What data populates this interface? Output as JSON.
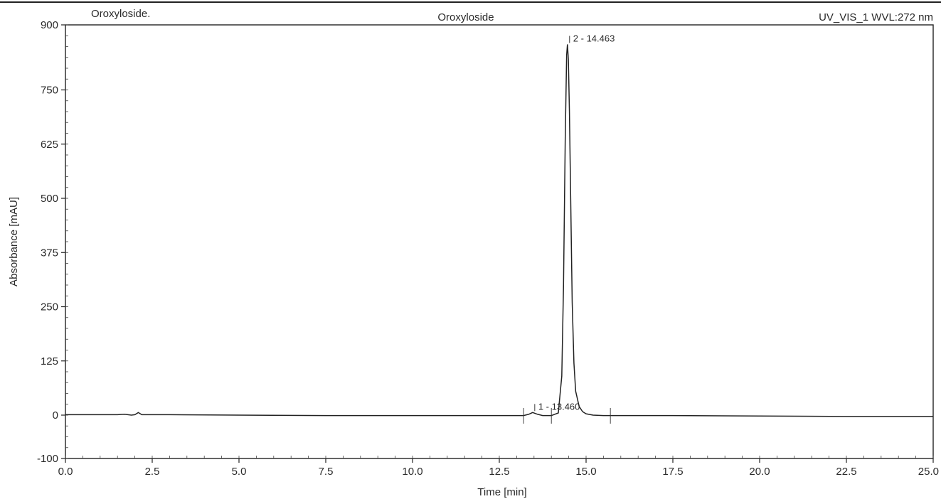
{
  "header": {
    "sample_name": "Oroxyloside.",
    "title": "Oroxyloside",
    "channel": "UV_VIS_1 WVL:272 nm"
  },
  "chart_data": {
    "type": "line",
    "title": "Oroxyloside",
    "xlabel": "Time [min]",
    "ylabel": "Absorbance [mAU]",
    "xlim": [
      0,
      25
    ],
    "ylim": [
      -100,
      900
    ],
    "x_ticks": [
      0,
      2.5,
      5,
      7.5,
      10,
      12.5,
      15,
      17.5,
      20,
      22.5,
      25
    ],
    "x_tick_labels": [
      "0.0",
      "2.5",
      "5.0",
      "7.5",
      "10.0",
      "12.5",
      "15.0",
      "17.5",
      "20.0",
      "22.5",
      "25.0"
    ],
    "y_ticks": [
      -100,
      0,
      125,
      250,
      375,
      500,
      625,
      750,
      900
    ],
    "y_tick_labels": [
      "-100",
      "0",
      "125",
      "250",
      "375",
      "500",
      "625",
      "750",
      "900"
    ],
    "grid": false,
    "peaks": [
      {
        "number": 1,
        "retention_time": 13.46,
        "label": "1 - 13.460",
        "height_mau": 6
      },
      {
        "number": 2,
        "retention_time": 14.463,
        "label": "2 - 14.463",
        "height_mau": 855
      }
    ],
    "series": [
      {
        "x": [
          0.0,
          1.5,
          1.7,
          1.8,
          1.9,
          2.0,
          2.1,
          2.2,
          2.3,
          3.0,
          5.0,
          7.5,
          10.0,
          12.5,
          13.2,
          13.35,
          13.46,
          13.6,
          13.75,
          14.0,
          14.2,
          14.3,
          14.35,
          14.4,
          14.44,
          14.463,
          14.49,
          14.52,
          14.56,
          14.6,
          14.65,
          14.7,
          14.8,
          14.9,
          15.0,
          15.2,
          15.5,
          16.0,
          17.5,
          20.0,
          22.5,
          25.0
        ],
        "y": [
          1,
          1,
          2,
          1,
          0,
          1,
          6,
          1,
          1,
          1,
          0,
          -1,
          -1,
          -1,
          -1,
          2,
          6,
          2,
          -1,
          -1,
          5,
          90,
          300,
          640,
          830,
          855,
          820,
          700,
          480,
          260,
          120,
          55,
          20,
          8,
          3,
          0,
          -1,
          -1,
          -1,
          -2,
          -3,
          -3
        ]
      }
    ]
  }
}
